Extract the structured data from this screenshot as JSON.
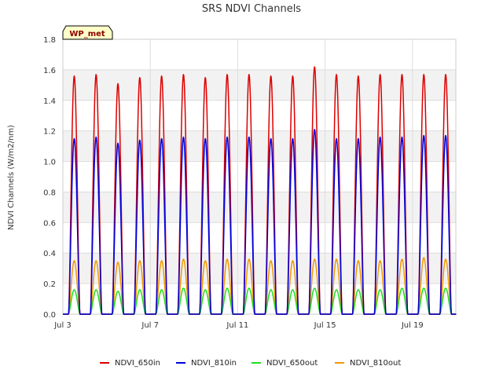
{
  "chart_data": {
    "type": "line",
    "title": "SRS NDVI Channels",
    "ylabel": "NDVI Channels (W/m2/nm)",
    "xlabel": "",
    "ylim": [
      0,
      1.8
    ],
    "yticks": [
      "0.0",
      "0.2",
      "0.4",
      "0.6",
      "0.8",
      "1.0",
      "1.2",
      "1.4",
      "1.6",
      "1.8"
    ],
    "xlim": [
      "2023-07-03",
      "2023-07-21"
    ],
    "xticks": [
      {
        "date": "2023-07-03",
        "label": "Jul 3"
      },
      {
        "date": "2023-07-07",
        "label": "Jul 7"
      },
      {
        "date": "2023-07-11",
        "label": "Jul 11"
      },
      {
        "date": "2023-07-15",
        "label": "Jul 15"
      },
      {
        "date": "2023-07-19",
        "label": "Jul 19"
      }
    ],
    "grid": true,
    "legend_position": "bottom",
    "badge": "WP_met",
    "days": [
      "2023-07-03",
      "2023-07-04",
      "2023-07-05",
      "2023-07-06",
      "2023-07-07",
      "2023-07-08",
      "2023-07-09",
      "2023-07-10",
      "2023-07-11",
      "2023-07-12",
      "2023-07-13",
      "2023-07-14",
      "2023-07-15",
      "2023-07-16",
      "2023-07-17",
      "2023-07-18",
      "2023-07-19",
      "2023-07-20"
    ],
    "series": [
      {
        "name": "NDVI_650in",
        "color": "#dd0000",
        "daily_peaks": [
          1.56,
          1.57,
          1.51,
          1.55,
          1.56,
          1.57,
          1.55,
          1.57,
          1.57,
          1.56,
          1.56,
          1.62,
          1.57,
          1.56,
          1.57,
          1.57,
          1.57,
          1.57
        ]
      },
      {
        "name": "NDVI_810in",
        "color": "#0000dd",
        "daily_peaks": [
          1.15,
          1.16,
          1.12,
          1.14,
          1.15,
          1.16,
          1.15,
          1.16,
          1.16,
          1.15,
          1.15,
          1.21,
          1.15,
          1.15,
          1.16,
          1.16,
          1.17,
          1.17
        ]
      },
      {
        "name": "NDVI_650out",
        "color": "#22dd22",
        "daily_peaks": [
          0.16,
          0.16,
          0.15,
          0.16,
          0.16,
          0.17,
          0.16,
          0.17,
          0.17,
          0.16,
          0.16,
          0.17,
          0.16,
          0.16,
          0.16,
          0.17,
          0.17,
          0.17
        ]
      },
      {
        "name": "NDVI_810out",
        "color": "#ee9900",
        "daily_peaks": [
          0.35,
          0.35,
          0.34,
          0.35,
          0.35,
          0.36,
          0.35,
          0.36,
          0.36,
          0.35,
          0.35,
          0.36,
          0.36,
          0.35,
          0.35,
          0.36,
          0.37,
          0.36
        ]
      }
    ]
  }
}
